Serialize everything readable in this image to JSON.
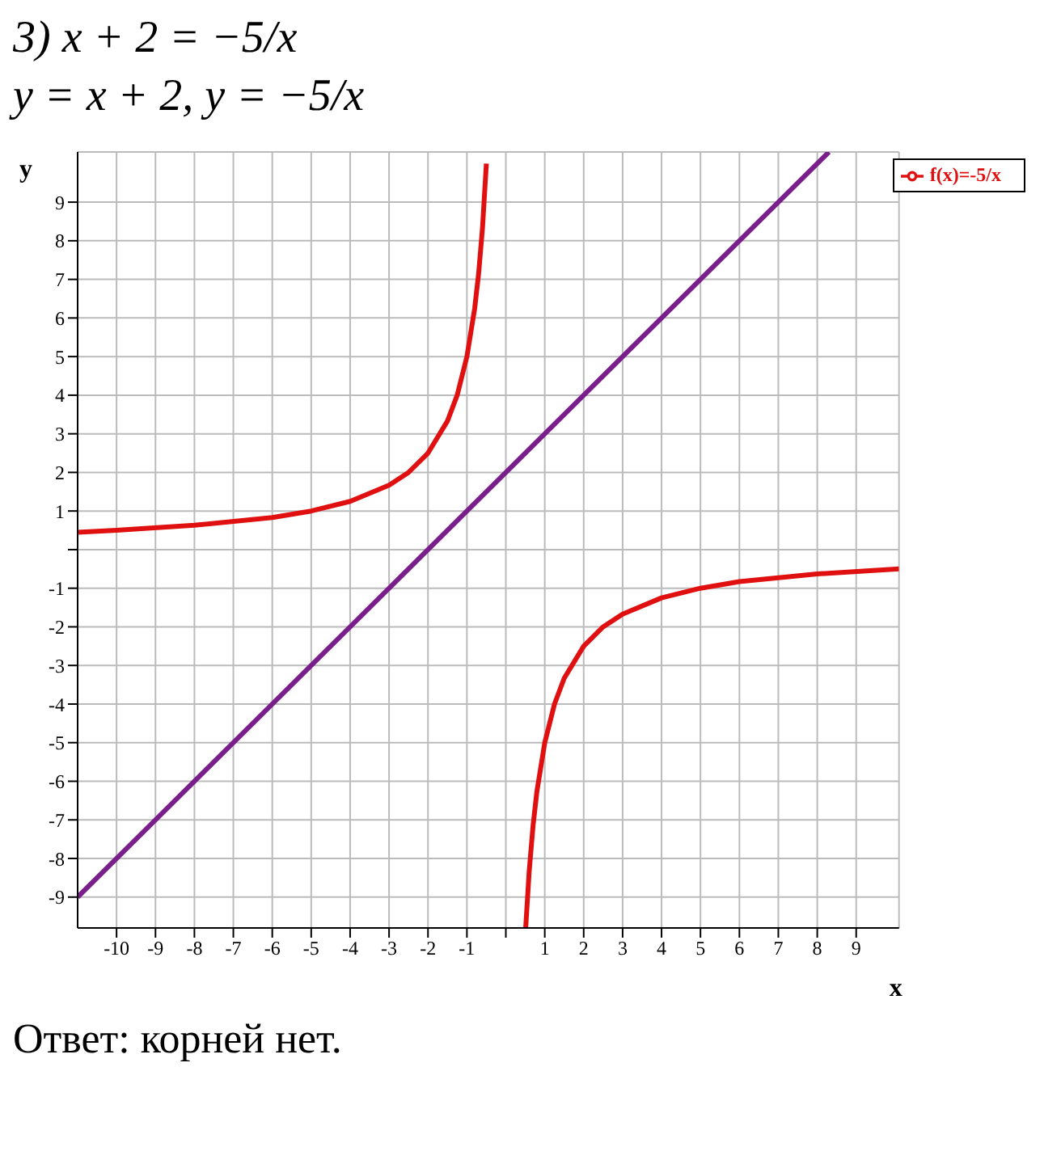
{
  "chart_data": {
    "type": "line",
    "title": "3) x + 2 = −5/x",
    "subtitle": "y = x + 2,   y = −5/x",
    "xlabel": "x",
    "ylabel": "y",
    "annotations": [
      "Ответ: корней нет."
    ],
    "xlim": [
      -11,
      10.1
    ],
    "ylim": [
      -9.8,
      10.3
    ],
    "xticks": [
      -10,
      -9,
      -8,
      -7,
      -6,
      -5,
      -4,
      -3,
      -2,
      -1,
      {
        "value": 0,
        "label": null
      },
      1,
      2,
      3,
      4,
      5,
      6,
      7,
      8,
      9
    ],
    "yticks": [
      -9,
      -8,
      -7,
      -6,
      -5,
      -4,
      -3,
      -2,
      -1,
      {
        "value": 0,
        "label": null
      },
      1,
      2,
      3,
      4,
      5,
      6,
      7,
      8,
      9
    ],
    "grid": true,
    "legend": "top right",
    "marker": "none",
    "line_style": "solid",
    "series": [
      {
        "color": "#7a1e8c",
        "x": [
          -11,
          8.3
        ],
        "values": [
          -9,
          10.3
        ]
      },
      {
        "name": "f(x)=-5/x",
        "color": "#e01010",
        "x": [
          -11,
          -10,
          -8,
          -6,
          -5,
          -4,
          -3,
          -2.5,
          -2,
          -1.5,
          -1.25,
          -1,
          -0.8,
          -0.7,
          -0.6,
          -0.5,
          0,
          0.51,
          0.6,
          0.7,
          0.8,
          1,
          1.25,
          1.5,
          2,
          2.5,
          3,
          4,
          5,
          6,
          8,
          10.1
        ],
        "values": [
          0.45,
          0.5,
          0.63,
          0.83,
          1,
          1.25,
          1.67,
          2,
          2.5,
          3.33,
          4,
          5,
          6.25,
          7.14,
          8.33,
          10,
          null,
          -9.8,
          -8.33,
          -7.14,
          -6.25,
          -5,
          -4,
          -3.33,
          -2.5,
          -2,
          -1.67,
          -1.25,
          -1,
          -0.83,
          -0.63,
          -0.5
        ]
      }
    ]
  }
}
